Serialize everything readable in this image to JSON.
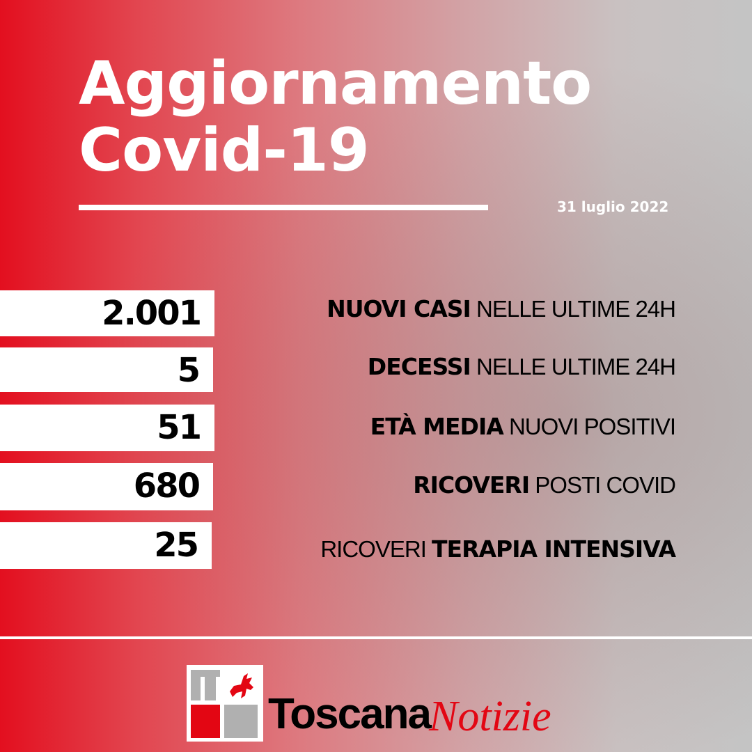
{
  "title": {
    "line1": "Aggiornamento",
    "line2": "Covid-19"
  },
  "date": "31 luglio 2022",
  "stats": [
    {
      "value": "2.001",
      "label_bold": "NUOVI CASI",
      "label_regular": " NELLE ULTIME 24H",
      "bold_first": true
    },
    {
      "value": "5",
      "label_bold": "DECESSI",
      "label_regular": " NELLE ULTIME 24H",
      "bold_first": true
    },
    {
      "value": "51",
      "label_bold": "ETÀ MEDIA",
      "label_regular": " NUOVI POSITIVI",
      "bold_first": true
    },
    {
      "value": "680",
      "label_bold": "RICOVERI",
      "label_regular": " POSTI COVID",
      "bold_first": true
    },
    {
      "value": "25",
      "label_regular": "RICOVERI ",
      "label_bold": "TERAPIA INTENSIVA",
      "bold_first": false
    }
  ],
  "logo": {
    "brand_bold": "Toscana",
    "brand_italic": "Notizie",
    "icon": "pegasus-icon"
  },
  "colors": {
    "accent_red": "#e30f1f",
    "logo_red": "#e30613",
    "logo_gray": "#b0b0b0"
  }
}
